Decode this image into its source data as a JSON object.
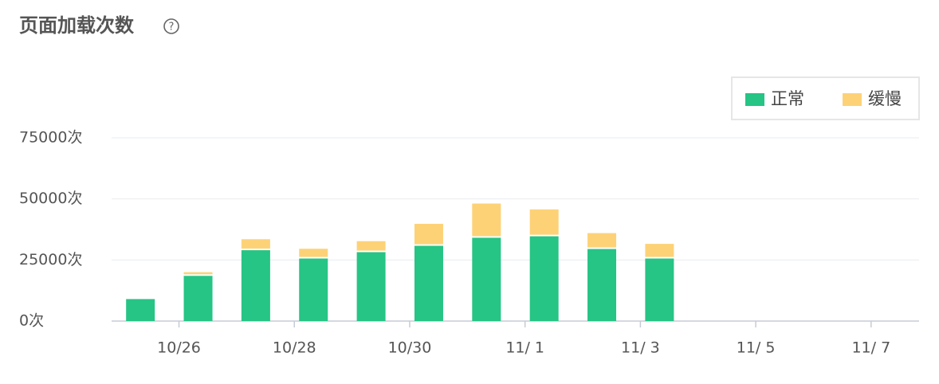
{
  "chart_data": {
    "type": "stacked-bar",
    "title": "页面加载次数",
    "categories": [
      null,
      "10/26",
      null,
      "10/28",
      null,
      "10/30",
      null,
      "11/ 1",
      null,
      "11/ 3",
      null,
      "11/ 5",
      null,
      "11/ 7"
    ],
    "series": [
      {
        "name": "正常",
        "color": "#26c485",
        "values": [
          9000,
          18500,
          29000,
          25600,
          28200,
          30800,
          34100,
          34700,
          29500,
          25600,
          null,
          null,
          null,
          null
        ]
      },
      {
        "name": "缓慢",
        "color": "#fdd277",
        "values": [
          null,
          1500,
          4500,
          4000,
          4500,
          9000,
          14000,
          11000,
          6500,
          6000,
          null,
          null,
          null,
          null
        ]
      }
    ],
    "ylim": [
      0,
      75000
    ],
    "yticks": [
      {
        "value": 0,
        "label": "0次"
      },
      {
        "value": 25000,
        "label": "25000次"
      },
      {
        "value": 50000,
        "label": "50000次"
      },
      {
        "value": 75000,
        "label": "75000次"
      }
    ],
    "grid": true,
    "legend": "top-right"
  }
}
